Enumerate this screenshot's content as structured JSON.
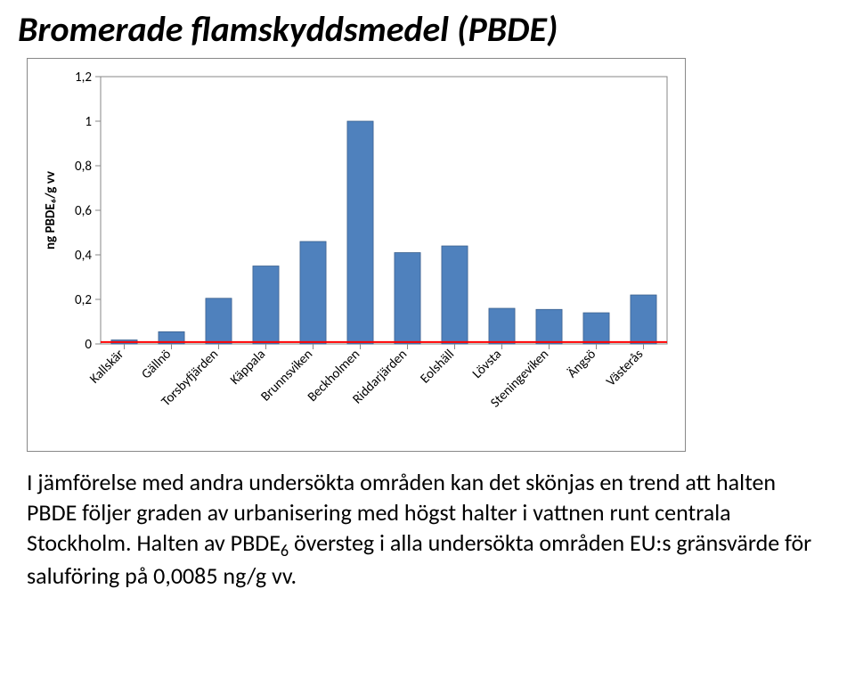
{
  "title": "Bromerade flamskyddsmedel (PBDE)",
  "chart": {
    "type": "bar",
    "ylabel": "ng PBDE₆/g vv",
    "ylim": [
      0,
      1.2
    ],
    "ytick_step": 0.2,
    "yticks": [
      0,
      0.2,
      0.4,
      0.6,
      0.8,
      1,
      1.2
    ],
    "ytick_labels": [
      "0",
      "0,2",
      "0,4",
      "0,6",
      "0,8",
      "1",
      "1,2"
    ],
    "categories": [
      "Kallskär",
      "Gällnö",
      "Torsbyfjärden",
      "Käppala",
      "Brunnsviken",
      "Beckholmen",
      "Riddarjärden",
      "Eolshäll",
      "Lövsta",
      "Steningeviken",
      "Ängsö",
      "Västerås"
    ],
    "values": [
      0.018,
      0.055,
      0.205,
      0.35,
      0.46,
      1.0,
      0.41,
      0.44,
      0.16,
      0.155,
      0.14,
      0.22
    ],
    "bar_color": "#4f81bd",
    "bar_border_color": "#385d8a",
    "bar_width": 0.55,
    "threshold_line": {
      "value": 0.0085,
      "color": "#ff0000",
      "width": 2
    },
    "background_color": "#ffffff",
    "axis_color": "#878787",
    "tick_color": "#878787",
    "grid": false,
    "label_font_family": "Calibri",
    "tick_fontsize": 15,
    "ylabel_fontsize": 15,
    "ylabel_fontweight": "bold",
    "category_label_rotation_deg": -45,
    "plot_area_border": "#878787"
  },
  "caption_parts": {
    "p1": "I jämförelse med andra undersökta områden kan det skönjas en trend att halten PBDE följer graden av urbanisering med högst halter i vattnen runt centrala Stockholm. Halten av PBDE",
    "sub": "6",
    "p2": " översteg i alla undersökta områden EU:s gränsvärde för saluföring på 0,0085 ng/g vv."
  }
}
